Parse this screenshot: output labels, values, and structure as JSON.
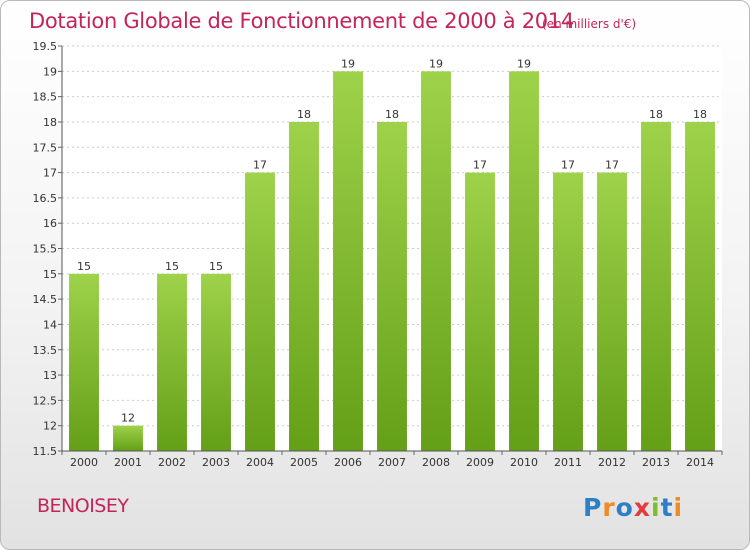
{
  "title": "Dotation Globale de Fonctionnement de 2000 à 2014",
  "subtitle": "(en milliers d'€)",
  "commune": "BENOISEY",
  "logo_text": "Proxiti",
  "colors": {
    "title": "#c4245b",
    "bar_light": "#9ed24a",
    "bar_dark": "#649f18",
    "grid": "#cccccc"
  },
  "chart_data": {
    "type": "bar",
    "categories": [
      "2000",
      "2001",
      "2002",
      "2003",
      "2004",
      "2005",
      "2006",
      "2007",
      "2008",
      "2009",
      "2010",
      "2011",
      "2012",
      "2013",
      "2014"
    ],
    "values": [
      15,
      12,
      15,
      15,
      17,
      18,
      19,
      18,
      19,
      17,
      19,
      17,
      17,
      18,
      18
    ],
    "data_labels": [
      "15",
      "12",
      "15",
      "15",
      "17",
      "18",
      "19",
      "18",
      "19",
      "17",
      "19",
      "17",
      "17",
      "18",
      "18"
    ],
    "title": "Dotation Globale de Fonctionnement de 2000 à 2014",
    "subtitle": "(en milliers d'€)",
    "xlabel": "",
    "ylabel": "",
    "ylim": [
      11.5,
      19.5
    ],
    "yticks": [
      "11.5",
      "12",
      "12.5",
      "13",
      "13.5",
      "14",
      "14.5",
      "15",
      "15.5",
      "16",
      "16.5",
      "17",
      "17.5",
      "18",
      "18.5",
      "19",
      "19.5"
    ],
    "grid": true,
    "legend": "none"
  }
}
